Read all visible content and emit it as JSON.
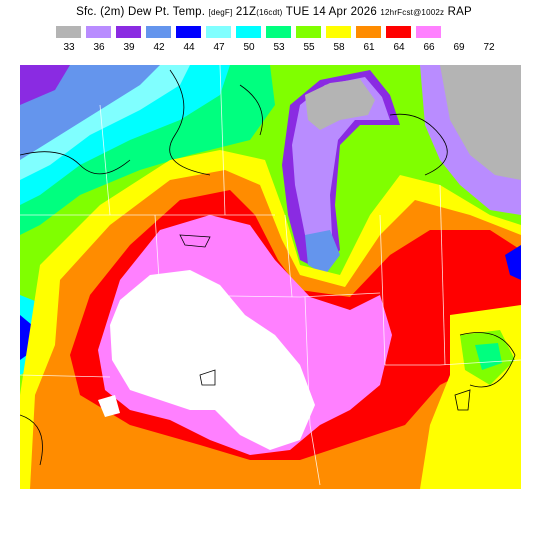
{
  "header": {
    "title_main": "Sfc. (2m) Dew Pt. Temp.",
    "unit_text": "[degF]",
    "valid_time": "21Z",
    "local_time": "(16cdt)",
    "date": "TUE 14 Apr 2026",
    "forecast_info": "12hrFcst@1002z",
    "model": "RAP"
  },
  "legend": {
    "labels": [
      "33",
      "36",
      "39",
      "42",
      "44",
      "47",
      "50",
      "53",
      "55",
      "58",
      "61",
      "64",
      "66",
      "69",
      "72"
    ],
    "colors": [
      "#b4b4b4",
      "#b98cff",
      "#8a2be2",
      "#6495ed",
      "#0000ff",
      "#80ffff",
      "#00ffff",
      "#00ff7f",
      "#80ff00",
      "#ffff00",
      "#ff8c00",
      "#ff0000",
      "#ff80ff",
      "#ffffff"
    ]
  },
  "map": {
    "field": "dew point",
    "colors": {
      "gray": "#b4b4b4",
      "lavender": "#b98cff",
      "purple": "#8a2be2",
      "cornflower": "#6495ed",
      "blue": "#0000ff",
      "lightcyan": "#80ffff",
      "cyan": "#00ffff",
      "springgreen": "#00ff7f",
      "chartreuse": "#80ff00",
      "yellow": "#ffff00",
      "orange": "#ff8c00",
      "red": "#ff0000",
      "pink": "#ff80ff",
      "white": "#ffffff"
    }
  }
}
